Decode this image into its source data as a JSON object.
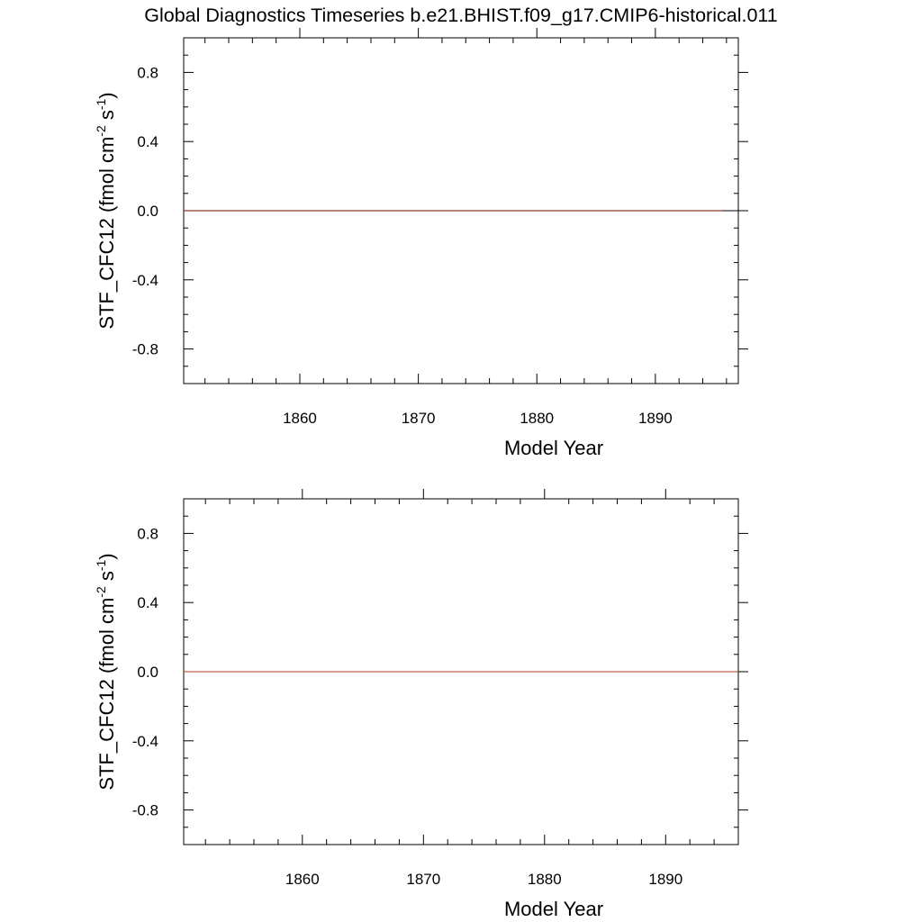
{
  "title": "Global Diagnostics Timeseries b.e21.BHIST.f09_g17.CMIP6-historical.011",
  "chart_data": [
    {
      "type": "line",
      "xlabel": "Model Year",
      "ylabel_main": "STF_CFC12 (fmol cm",
      "ylabel_sup1": "-2",
      "ylabel_mid": " s",
      "ylabel_sup2": "-1",
      "ylabel_end": ")",
      "xlim": [
        1850.2,
        1897.0
      ],
      "ylim": [
        -1.0,
        1.0
      ],
      "xticks": [
        1860,
        1870,
        1880,
        1890
      ],
      "xtick_labels": [
        "1860",
        "1870",
        "1880",
        "1890"
      ],
      "yticks": [
        0.8,
        0.4,
        0.0,
        -0.4,
        -0.8
      ],
      "ytick_labels": [
        "0.8",
        "0.4",
        "0.0",
        "-0.4",
        "-0.8"
      ],
      "series": [
        {
          "x": [
            1850.2,
            1895.7
          ],
          "y": [
            0.0,
            0.0
          ],
          "color": "#8b3a2a"
        }
      ],
      "zero_line": true
    },
    {
      "type": "line",
      "xlabel": "Model Year",
      "ylabel_main": "STF_CFC12 (fmol cm",
      "ylabel_sup1": "-2",
      "ylabel_mid": " s",
      "ylabel_sup2": "-1",
      "ylabel_end": ")",
      "xlim": [
        1850.2,
        1896.0
      ],
      "ylim": [
        -1.0,
        1.0
      ],
      "xticks": [
        1860,
        1870,
        1880,
        1890
      ],
      "xtick_labels": [
        "1860",
        "1870",
        "1880",
        "1890"
      ],
      "yticks": [
        0.8,
        0.4,
        0.0,
        -0.4,
        -0.8
      ],
      "ytick_labels": [
        "0.8",
        "0.4",
        "0.0",
        "-0.4",
        "-0.8"
      ],
      "series": [
        {
          "x": [
            1850.2,
            1896.0
          ],
          "y": [
            0.0,
            0.0
          ],
          "color": "#c0604a"
        }
      ],
      "zero_line": true
    }
  ]
}
